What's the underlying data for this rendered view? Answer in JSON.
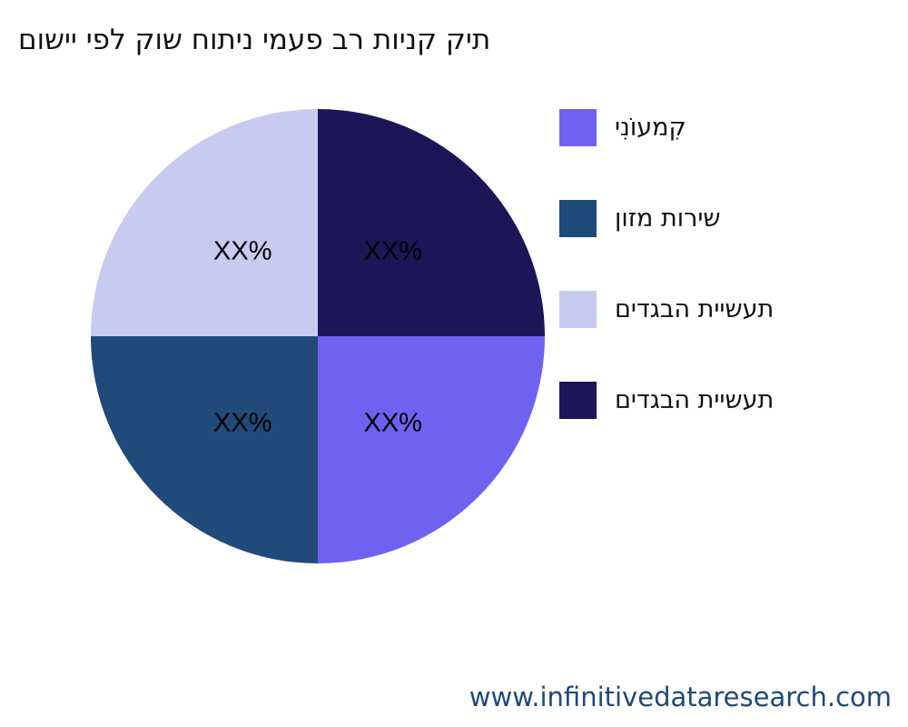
{
  "chart_data": {
    "type": "pie",
    "title": "תיק קניות רב פעמי ניתוח שוק לפי יישום",
    "slices": [
      {
        "name": "קִמעוֹנִי",
        "value": 25,
        "label": "XX%",
        "color": "#7062f0"
      },
      {
        "name": "שירות מזון",
        "value": 25,
        "label": "XX%",
        "color": "#1f4a79"
      },
      {
        "name": "תעשיית הבגדים",
        "value": 25,
        "label": "XX%",
        "color": "#c8caf0"
      },
      {
        "name": "תעשיית הבגדים",
        "value": 25,
        "label": "XX%",
        "color": "#1c1657"
      }
    ],
    "legend_position": "right"
  },
  "watermark": "www.infinitivedataresearch.com"
}
